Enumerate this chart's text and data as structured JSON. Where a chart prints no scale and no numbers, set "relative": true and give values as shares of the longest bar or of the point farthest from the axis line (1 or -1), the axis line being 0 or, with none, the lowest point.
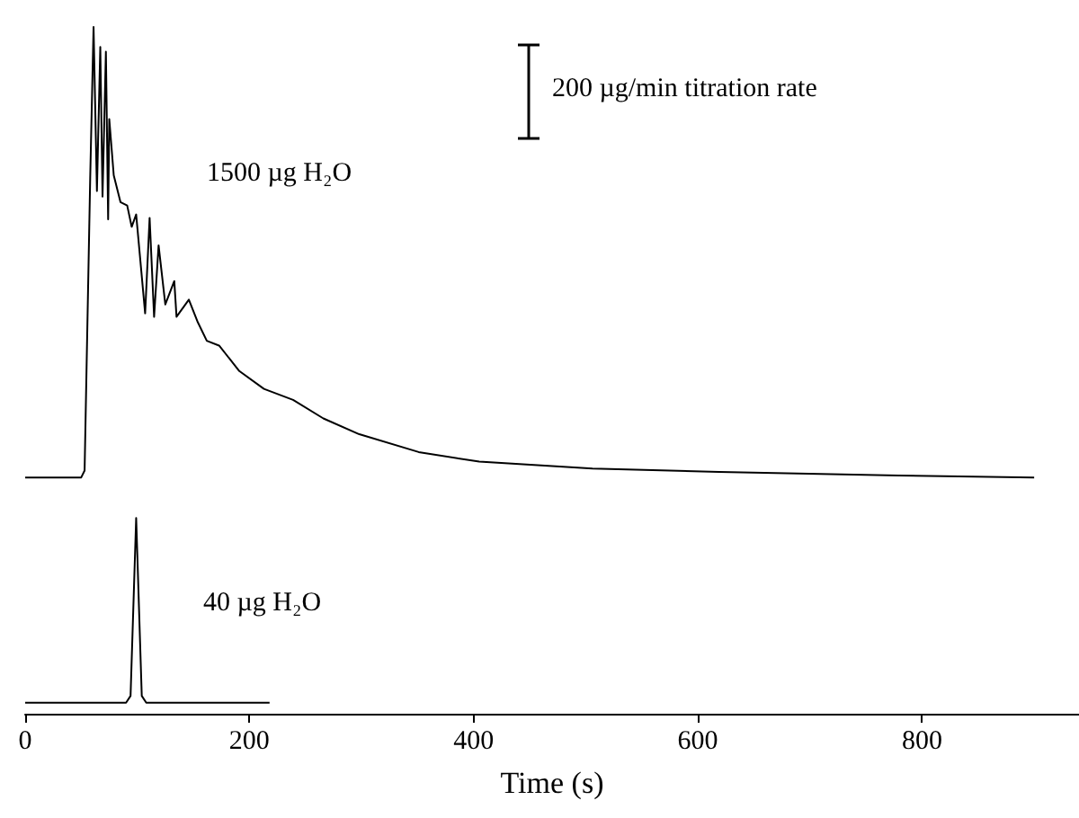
{
  "chart_data": {
    "type": "line",
    "relative": true,
    "xlabel": "Time (s)",
    "xlim": [
      0,
      940
    ],
    "xticks": [
      0,
      200,
      400,
      600,
      800
    ],
    "grid": false,
    "marker": "none",
    "line_style": "solid",
    "series": [
      {
        "color": "#000000",
        "x": [
          0,
          50,
          53,
          58,
          61,
          64,
          67,
          69,
          72,
          74,
          75,
          79,
          85,
          91,
          95,
          99,
          107,
          111,
          115,
          119,
          125,
          133,
          135,
          146,
          154,
          162,
          173,
          191,
          213,
          239,
          266,
          298,
          351,
          405,
          506,
          619,
          779,
          900
        ],
        "values": [
          0.344,
          0.344,
          0.354,
          0.78,
          1.0,
          0.761,
          0.971,
          0.753,
          0.964,
          0.72,
          0.866,
          0.784,
          0.745,
          0.74,
          0.709,
          0.727,
          0.583,
          0.722,
          0.578,
          0.682,
          0.596,
          0.63,
          0.578,
          0.603,
          0.57,
          0.543,
          0.536,
          0.499,
          0.473,
          0.457,
          0.43,
          0.407,
          0.381,
          0.367,
          0.357,
          0.352,
          0.347,
          0.344
        ]
      },
      {
        "color": "#000000",
        "x": [
          0,
          90,
          94,
          99,
          104,
          108,
          218
        ],
        "values": [
          0.016,
          0.016,
          0.026,
          0.285,
          0.026,
          0.016,
          0.016
        ]
      }
    ],
    "annotations": [
      "1500 µg H₂O",
      "40 µg H₂O",
      "200 µg/min titration rate"
    ]
  }
}
